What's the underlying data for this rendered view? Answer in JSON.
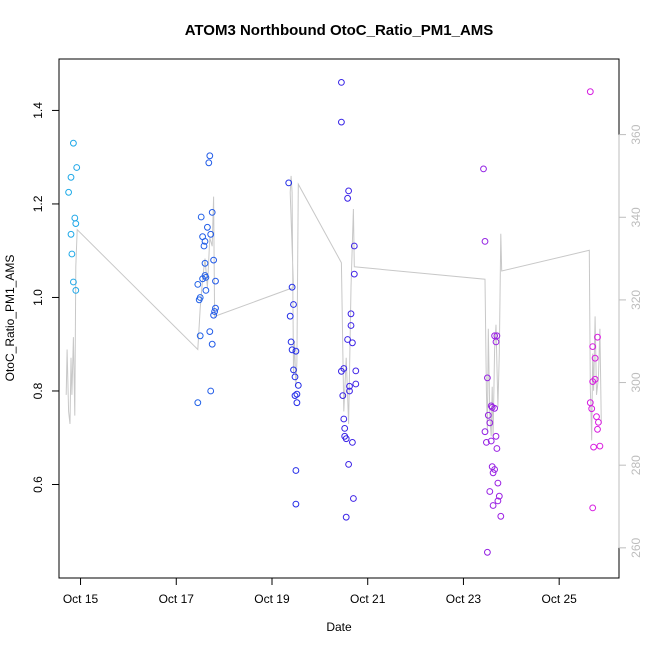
{
  "chart_data": {
    "type": "scatter",
    "title": "ATOM3 Northbound OtoC_Ratio_PM1_AMS",
    "xlabel": "Date",
    "ylabel": "OtoC_Ratio_PM1_AMS",
    "xlim": [
      14.55,
      26.25
    ],
    "ylim": [
      0.4,
      1.51
    ],
    "y2lim": [
      252.7,
      378.3
    ],
    "x_ticks": [
      15,
      17,
      19,
      21,
      23,
      25
    ],
    "x_tick_labels": [
      "Oct 15",
      "Oct 17",
      "Oct 19",
      "Oct 21",
      "Oct 23",
      "Oct 25"
    ],
    "y_ticks": [
      0.6,
      0.8,
      1.0,
      1.2,
      1.4
    ],
    "y_tick_labels": [
      "0.6",
      "0.8",
      "1.0",
      "1.2",
      "1.4"
    ],
    "y2_ticks": [
      260,
      280,
      300,
      320,
      340,
      360
    ],
    "y2_tick_labels": [
      "260",
      "280",
      "300",
      "320",
      "340",
      "360"
    ],
    "grid": false,
    "colors": {
      "points_start": "#1fb0e8",
      "points_mid": "#2424e8",
      "points_end": "#e81fe0",
      "line": "#c8c8c8",
      "right_axis": "#bdbdbd",
      "frame": "#000000"
    },
    "series": [
      {
        "points": [
          [
            14.75,
            1.225
          ],
          [
            14.8,
            1.135
          ],
          [
            14.8,
            1.257
          ],
          [
            14.82,
            1.093
          ],
          [
            14.85,
            1.033
          ],
          [
            14.85,
            1.33
          ],
          [
            14.88,
            1.17
          ],
          [
            14.9,
            1.158
          ],
          [
            14.9,
            1.015
          ],
          [
            14.92,
            1.278
          ],
          [
            17.45,
            0.775
          ],
          [
            17.45,
            1.028
          ],
          [
            17.48,
            0.995
          ],
          [
            17.5,
            1.0
          ],
          [
            17.5,
            0.918
          ],
          [
            17.52,
            1.172
          ],
          [
            17.55,
            1.13
          ],
          [
            17.55,
            1.04
          ],
          [
            17.58,
            1.11
          ],
          [
            17.6,
            1.12
          ],
          [
            17.6,
            1.073
          ],
          [
            17.6,
            1.047
          ],
          [
            17.62,
            1.043
          ],
          [
            17.62,
            1.015
          ],
          [
            17.65,
            1.15
          ],
          [
            17.68,
            1.288
          ],
          [
            17.7,
            1.303
          ],
          [
            17.7,
            0.927
          ],
          [
            17.72,
            0.8
          ],
          [
            17.72,
            1.135
          ],
          [
            17.75,
            1.182
          ],
          [
            17.75,
            0.9
          ],
          [
            17.78,
            0.962
          ],
          [
            17.78,
            1.08
          ],
          [
            17.8,
            0.97
          ],
          [
            17.82,
            1.035
          ],
          [
            17.82,
            0.977
          ],
          [
            19.35,
            1.245
          ],
          [
            19.38,
            0.96
          ],
          [
            19.4,
            0.905
          ],
          [
            19.42,
            1.022
          ],
          [
            19.42,
            0.888
          ],
          [
            19.45,
            0.985
          ],
          [
            19.45,
            0.845
          ],
          [
            19.48,
            0.83
          ],
          [
            19.48,
            0.79
          ],
          [
            19.5,
            0.885
          ],
          [
            19.5,
            0.63
          ],
          [
            19.5,
            0.558
          ],
          [
            19.52,
            0.793
          ],
          [
            19.52,
            0.775
          ],
          [
            19.55,
            0.812
          ],
          [
            20.45,
            1.46
          ],
          [
            20.45,
            1.375
          ],
          [
            20.45,
            0.842
          ],
          [
            20.48,
            0.79
          ],
          [
            20.5,
            0.74
          ],
          [
            20.5,
            0.848
          ],
          [
            20.52,
            0.72
          ],
          [
            20.52,
            0.703
          ],
          [
            20.55,
            0.698
          ],
          [
            20.55,
            0.53
          ],
          [
            20.58,
            1.212
          ],
          [
            20.58,
            0.91
          ],
          [
            20.6,
            1.228
          ],
          [
            20.6,
            0.643
          ],
          [
            20.62,
            0.81
          ],
          [
            20.62,
            0.8
          ],
          [
            20.65,
            0.965
          ],
          [
            20.65,
            0.94
          ],
          [
            20.68,
            0.903
          ],
          [
            20.68,
            0.69
          ],
          [
            20.7,
            0.57
          ],
          [
            20.72,
            1.11
          ],
          [
            20.72,
            1.05
          ],
          [
            20.75,
            0.815
          ],
          [
            20.75,
            0.843
          ],
          [
            23.42,
            1.275
          ],
          [
            23.45,
            1.12
          ],
          [
            23.45,
            0.713
          ],
          [
            23.48,
            0.69
          ],
          [
            23.5,
            0.828
          ],
          [
            23.5,
            0.455
          ],
          [
            23.52,
            0.748
          ],
          [
            23.55,
            0.732
          ],
          [
            23.55,
            0.585
          ],
          [
            23.58,
            0.768
          ],
          [
            23.58,
            0.693
          ],
          [
            23.6,
            0.765
          ],
          [
            23.6,
            0.638
          ],
          [
            23.62,
            0.625
          ],
          [
            23.62,
            0.555
          ],
          [
            23.65,
            0.918
          ],
          [
            23.65,
            0.763
          ],
          [
            23.65,
            0.632
          ],
          [
            23.68,
            0.905
          ],
          [
            23.68,
            0.703
          ],
          [
            23.7,
            0.677
          ],
          [
            23.7,
            0.918
          ],
          [
            23.72,
            0.565
          ],
          [
            23.72,
            0.603
          ],
          [
            23.75,
            0.575
          ],
          [
            23.78,
            0.532
          ],
          [
            25.65,
            1.44
          ],
          [
            25.65,
            0.775
          ],
          [
            25.68,
            0.762
          ],
          [
            25.7,
            0.895
          ],
          [
            25.7,
            0.82
          ],
          [
            25.7,
            0.55
          ],
          [
            25.72,
            0.68
          ],
          [
            25.75,
            0.87
          ],
          [
            25.75,
            0.825
          ],
          [
            25.78,
            0.745
          ],
          [
            25.8,
            0.718
          ],
          [
            25.8,
            0.915
          ],
          [
            25.82,
            0.733
          ],
          [
            25.85,
            0.682
          ]
        ]
      },
      {
        "axis": "right",
        "points": [
          [
            14.7,
            297
          ],
          [
            14.72,
            308
          ],
          [
            14.75,
            293
          ],
          [
            14.78,
            290
          ],
          [
            14.8,
            306
          ],
          [
            14.82,
            297
          ],
          [
            14.85,
            311
          ],
          [
            14.88,
            292
          ],
          [
            14.9,
            328
          ],
          [
            14.93,
            337
          ],
          [
            17.45,
            308
          ],
          [
            17.5,
            318
          ],
          [
            17.55,
            325
          ],
          [
            17.6,
            330
          ],
          [
            17.65,
            323
          ],
          [
            17.7,
            335
          ],
          [
            17.75,
            333
          ],
          [
            17.78,
            345
          ],
          [
            17.8,
            316
          ],
          [
            19.45,
            323
          ],
          [
            19.38,
            346
          ],
          [
            19.4,
            350
          ],
          [
            19.42,
            346
          ],
          [
            19.45,
            302
          ],
          [
            19.47,
            310
          ],
          [
            19.5,
            299
          ],
          [
            19.52,
            305
          ],
          [
            19.55,
            348
          ],
          [
            20.45,
            329
          ],
          [
            20.5,
            293
          ],
          [
            20.55,
            306
          ],
          [
            20.6,
            290
          ],
          [
            20.65,
            323
          ],
          [
            20.7,
            342
          ],
          [
            20.72,
            328
          ],
          [
            23.45,
            325
          ],
          [
            23.48,
            298
          ],
          [
            23.5,
            288
          ],
          [
            23.52,
            313
          ],
          [
            23.55,
            292
          ],
          [
            23.58,
            287
          ],
          [
            23.6,
            299
          ],
          [
            23.62,
            287
          ],
          [
            23.65,
            308
          ],
          [
            23.68,
            314
          ],
          [
            23.72,
            294
          ],
          [
            23.75,
            307
          ],
          [
            23.78,
            336
          ],
          [
            23.8,
            327
          ],
          [
            25.63,
            332
          ],
          [
            25.65,
            299
          ],
          [
            25.68,
            286
          ],
          [
            25.7,
            307
          ],
          [
            25.72,
            298
          ],
          [
            25.75,
            316
          ],
          [
            25.78,
            297
          ],
          [
            25.82,
            301
          ],
          [
            25.85,
            313
          ],
          [
            25.88,
            290
          ]
        ]
      }
    ]
  }
}
